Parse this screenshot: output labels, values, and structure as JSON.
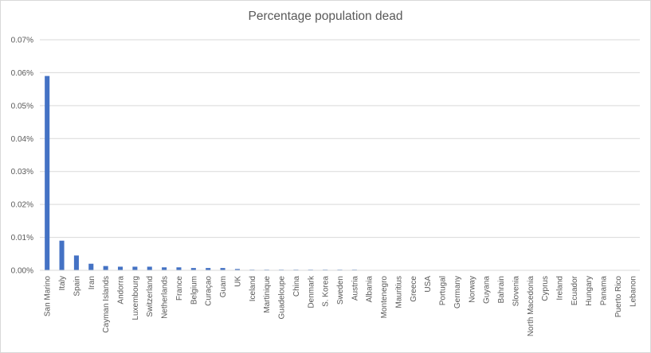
{
  "chart_data": {
    "type": "bar",
    "title": "Percentage population dead",
    "xlabel": "",
    "ylabel": "",
    "ylim": [
      0,
      0.07
    ],
    "yticks": [
      "0.00%",
      "0.01%",
      "0.02%",
      "0.03%",
      "0.04%",
      "0.05%",
      "0.06%",
      "0.07%"
    ],
    "grid": true,
    "bar_color": "#4472c4",
    "categories": [
      "San Marino",
      "Italy",
      "Spain",
      "Iran",
      "Cayman Islands",
      "Andorra",
      "Luxembourg",
      "Switzerland",
      "Netherlands",
      "France",
      "Belgium",
      "Curaçao",
      "Guam",
      "UK",
      "Iceland",
      "Martinique",
      "Guadeloupe",
      "China",
      "Denmark",
      "S. Korea",
      "Sweden",
      "Austria",
      "Albania",
      "Montenegro",
      "Mauritius",
      "Greece",
      "USA",
      "Portugal",
      "Germany",
      "Norway",
      "Guyana",
      "Bahrain",
      "Slovenia",
      "North Macedonia",
      "Cyprus",
      "Ireland",
      "Ecuador",
      "Hungary",
      "Panama",
      "Puerto Rico",
      "Lebanon"
    ],
    "values": [
      0.059,
      0.009,
      0.0045,
      0.002,
      0.0013,
      0.0011,
      0.0011,
      0.0011,
      0.0009,
      0.0009,
      0.0007,
      0.0007,
      0.0007,
      0.0004,
      0.0002,
      0.0002,
      0.0002,
      0.0002,
      0.0002,
      0.0002,
      0.0002,
      0.0002,
      0.0001,
      0.0001,
      0.0001,
      0.0001,
      0.0001,
      0.0001,
      0.0001,
      0.0001,
      0.0001,
      0.0001,
      0.0001,
      0.0001,
      0.0001,
      0.0001,
      0.0001,
      0.0001,
      0.0001,
      0.0001,
      0.0001
    ]
  }
}
